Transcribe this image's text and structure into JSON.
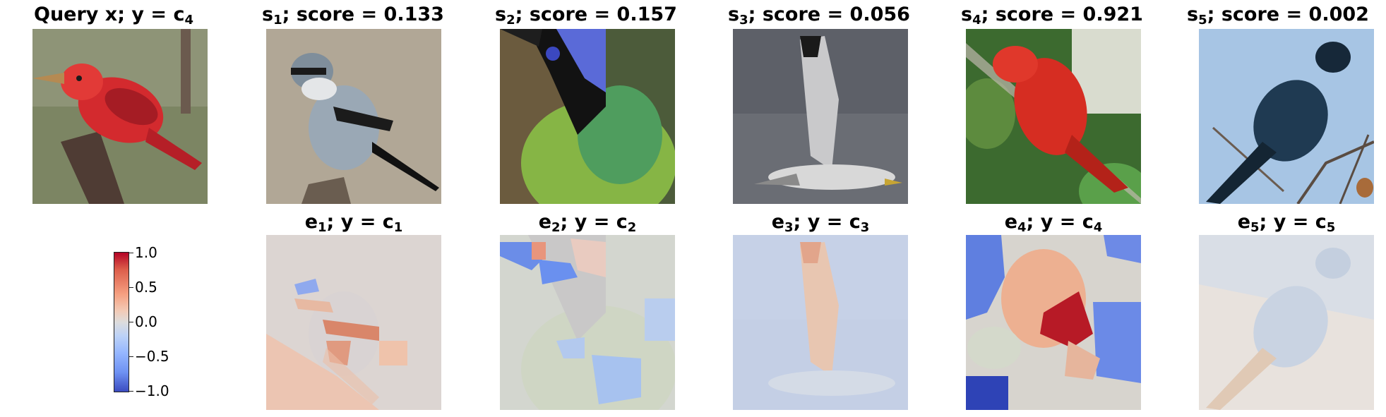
{
  "titles": {
    "query": {
      "text": "Query x; y = c",
      "sub": "4"
    },
    "s1": {
      "label": "s",
      "sub": "1",
      "rest": "; score = 0.133"
    },
    "s2": {
      "label": "s",
      "sub": "2",
      "rest": "; score = 0.157"
    },
    "s3": {
      "label": "s",
      "sub": "3",
      "rest": "; score = 0.056"
    },
    "s4": {
      "label": "s",
      "sub": "4",
      "rest": "; score = 0.921"
    },
    "s5": {
      "label": "s",
      "sub": "5",
      "rest": "; score = 0.002"
    },
    "e1": {
      "label": "e",
      "sub": "1",
      "rest": "; y = c",
      "sub2": "1"
    },
    "e2": {
      "label": "e",
      "sub": "2",
      "rest": "; y = c",
      "sub2": "2"
    },
    "e3": {
      "label": "e",
      "sub": "3",
      "rest": "; y = c",
      "sub2": "3"
    },
    "e4": {
      "label": "e",
      "sub": "4",
      "rest": "; y = c",
      "sub2": "4"
    },
    "e5": {
      "label": "e",
      "sub": "5",
      "rest": "; y = c",
      "sub2": "5"
    }
  },
  "colorbar": {
    "ticks": [
      "1.0",
      "0.5",
      "0.0",
      "−0.5",
      "−1.0"
    ],
    "colormap": "coolwarm",
    "range": [
      -1.0,
      1.0
    ]
  },
  "colors": {
    "positive": "#b40426",
    "neutral": "#dddcdc",
    "negative": "#3b4cc0"
  }
}
